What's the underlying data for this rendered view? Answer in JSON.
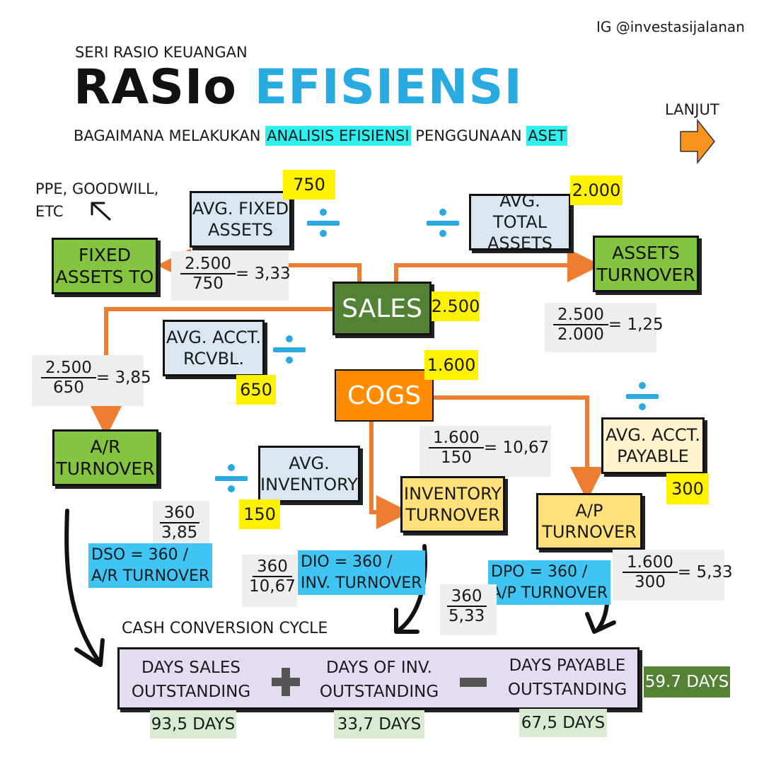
{
  "header": {
    "handle": "IG @investasijalanan",
    "series": "SERI RASIO KEUANGAN",
    "title_black": "RASIo",
    "title_blue": "EFISIENSI",
    "subtitle_pre": "BAGAIMANA MELAKUKAN",
    "subtitle_hl1": "ANALISIS EFISIENSI",
    "subtitle_mid": "PENGGUNAAN",
    "subtitle_hl2": "ASET",
    "next_label": "LANJUT"
  },
  "notes": {
    "ppe_line1": "PPE, GOODWILL,",
    "ppe_line2": "ETC"
  },
  "sales": {
    "label": "SALES",
    "value": "2.500"
  },
  "cogs": {
    "label": "COGS",
    "value": "1.600"
  },
  "fixed_assets": {
    "avg_line1": "AVG. FIXED",
    "avg_line2": "ASSETS",
    "avg_value": "750",
    "ratio_line1": "FIXED",
    "ratio_line2": "ASSETS TO",
    "calc_num": "2.500",
    "calc_den": "750",
    "calc_result": "= 3,33"
  },
  "total_assets": {
    "avg_line1": "AVG. TOTAL",
    "avg_line2": "ASSETS",
    "avg_value": "2.000",
    "ratio_line1": "ASSETS",
    "ratio_line2": "TURNOVER",
    "calc_num": "2.500",
    "calc_den": "2.000",
    "calc_result": "= 1,25"
  },
  "receivables": {
    "avg_line1": "AVG. ACCT.",
    "avg_line2": "RCVBL.",
    "avg_value": "650",
    "ratio_line1": "A/R",
    "ratio_line2": "TURNOVER",
    "calc_num": "2.500",
    "calc_den": "650",
    "calc_result": "= 3,85",
    "dso_num": "360",
    "dso_den": "3,85",
    "dso_line1": "DSO = 360 /",
    "dso_line2": "A/R TURNOVER"
  },
  "inventory": {
    "avg_line1": "AVG.",
    "avg_line2": "INVENTORY",
    "avg_value": "150",
    "ratio_line1": "INVENTORY",
    "ratio_line2": "TURNOVER",
    "calc_num": "1.600",
    "calc_den": "150",
    "calc_result": "= 10,67",
    "dio_num": "360",
    "dio_den": "10,67",
    "dio_line1": "DIO = 360 /",
    "dio_line2": "INV. TURNOVER"
  },
  "payables": {
    "avg_line1": "AVG. ACCT.",
    "avg_line2": "PAYABLE",
    "avg_value": "300",
    "ratio_line1": "A/P",
    "ratio_line2": "TURNOVER",
    "calc_num": "1.600",
    "calc_den": "300",
    "calc_result": "= 5,33",
    "dpo_num": "360",
    "dpo_den": "5,33",
    "dpo_line1": "DPO = 360 /",
    "dpo_line2": "A/P TURNOVER"
  },
  "ccc": {
    "title": "CASH CONVERSION CYCLE",
    "dso_line1": "DAYS SALES",
    "dso_line2": "OUTSTANDING",
    "dso_days": "93,5 DAYS",
    "plus": "+",
    "dio_line1": "DAYS OF INV.",
    "dio_line2": "OUTSTANDING",
    "dio_days": "33,7 DAYS",
    "minus": "−",
    "dpo_line1": "DAYS PAYABLE",
    "dpo_line2": "OUTSTANDING",
    "dpo_days": "67,5 DAYS",
    "result": "59.7 DAYS"
  },
  "colors": {
    "accent_blue": "#2aa9e3",
    "arrow_orange": "#ed7d31",
    "green": "#84c441",
    "dark_green": "#548235",
    "highlight_yellow": "#fff200",
    "cyan": "#40c4f4"
  }
}
